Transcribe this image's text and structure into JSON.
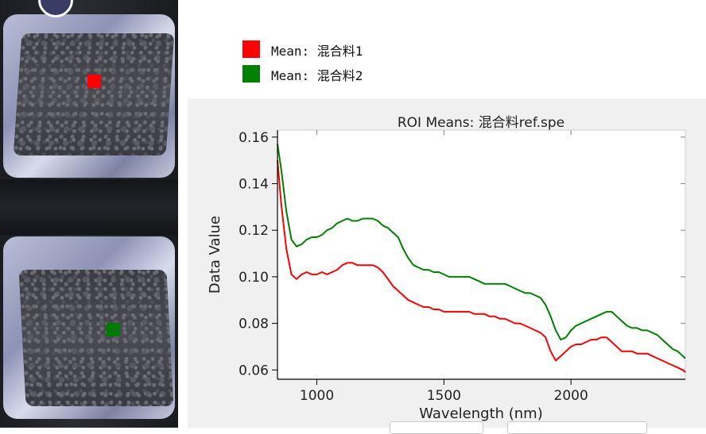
{
  "legend": {
    "items": [
      {
        "label": "Mean: 混合料1",
        "color": "#ff0000"
      },
      {
        "label": "Mean: 混合料2",
        "color": "#008000"
      }
    ]
  },
  "chart_data": {
    "type": "line",
    "title": "ROI Means: 混合料ref.spe",
    "xlabel": "Wavelength (nm)",
    "ylabel": "Data Value",
    "xlim": [
      845,
      2450
    ],
    "ylim": [
      0.056,
      0.163
    ],
    "xticks": [
      1000,
      1500,
      2000
    ],
    "xtick_labels": [
      "1000",
      "1500",
      "2000"
    ],
    "yticks": [
      0.06,
      0.08,
      0.1,
      0.12,
      0.14,
      0.16
    ],
    "ytick_labels": [
      "0.06",
      "0.08",
      "0.10",
      "0.12",
      "0.14",
      "0.16"
    ],
    "grid": false,
    "series": [
      {
        "name": "Mean: 混合料1",
        "color": "#ff0000",
        "x": [
          845,
          860,
          880,
          900,
          920,
          940,
          960,
          980,
          1000,
          1020,
          1040,
          1060,
          1080,
          1100,
          1120,
          1140,
          1160,
          1180,
          1200,
          1220,
          1240,
          1260,
          1280,
          1300,
          1320,
          1340,
          1360,
          1380,
          1400,
          1420,
          1440,
          1460,
          1480,
          1500,
          1520,
          1540,
          1560,
          1580,
          1600,
          1620,
          1640,
          1660,
          1680,
          1700,
          1720,
          1740,
          1760,
          1780,
          1800,
          1820,
          1840,
          1860,
          1880,
          1900,
          1920,
          1940,
          1960,
          1980,
          2000,
          2020,
          2040,
          2060,
          2080,
          2100,
          2120,
          2140,
          2160,
          2180,
          2200,
          2220,
          2240,
          2260,
          2280,
          2300,
          2320,
          2340,
          2360,
          2380,
          2400,
          2420,
          2440,
          2450
        ],
        "y": [
          0.15,
          0.131,
          0.112,
          0.101,
          0.099,
          0.101,
          0.102,
          0.101,
          0.101,
          0.102,
          0.101,
          0.102,
          0.103,
          0.105,
          0.106,
          0.106,
          0.105,
          0.105,
          0.105,
          0.105,
          0.104,
          0.102,
          0.099,
          0.096,
          0.094,
          0.092,
          0.09,
          0.089,
          0.088,
          0.087,
          0.087,
          0.086,
          0.086,
          0.085,
          0.085,
          0.085,
          0.085,
          0.085,
          0.085,
          0.084,
          0.084,
          0.084,
          0.083,
          0.083,
          0.082,
          0.082,
          0.081,
          0.08,
          0.08,
          0.079,
          0.078,
          0.077,
          0.076,
          0.074,
          0.068,
          0.064,
          0.066,
          0.068,
          0.07,
          0.071,
          0.071,
          0.072,
          0.073,
          0.073,
          0.074,
          0.074,
          0.072,
          0.07,
          0.068,
          0.068,
          0.068,
          0.067,
          0.067,
          0.067,
          0.066,
          0.065,
          0.064,
          0.063,
          0.062,
          0.061,
          0.06,
          0.059
        ]
      },
      {
        "name": "Mean: 混合料2",
        "color": "#008000",
        "x": [
          845,
          860,
          880,
          900,
          920,
          940,
          960,
          980,
          1000,
          1020,
          1040,
          1060,
          1080,
          1100,
          1120,
          1140,
          1160,
          1180,
          1200,
          1220,
          1240,
          1260,
          1280,
          1300,
          1320,
          1340,
          1360,
          1380,
          1400,
          1420,
          1440,
          1460,
          1480,
          1500,
          1520,
          1540,
          1560,
          1580,
          1600,
          1620,
          1640,
          1660,
          1680,
          1700,
          1720,
          1740,
          1760,
          1780,
          1800,
          1820,
          1840,
          1860,
          1880,
          1900,
          1920,
          1940,
          1960,
          1980,
          2000,
          2020,
          2040,
          2060,
          2080,
          2100,
          2120,
          2140,
          2160,
          2180,
          2200,
          2220,
          2240,
          2260,
          2280,
          2300,
          2320,
          2340,
          2360,
          2380,
          2400,
          2420,
          2440,
          2450
        ],
        "y": [
          0.157,
          0.146,
          0.128,
          0.116,
          0.113,
          0.114,
          0.116,
          0.117,
          0.117,
          0.118,
          0.12,
          0.121,
          0.123,
          0.124,
          0.125,
          0.124,
          0.124,
          0.125,
          0.125,
          0.125,
          0.124,
          0.122,
          0.121,
          0.119,
          0.117,
          0.112,
          0.108,
          0.105,
          0.104,
          0.103,
          0.103,
          0.102,
          0.102,
          0.101,
          0.1,
          0.1,
          0.1,
          0.1,
          0.1,
          0.099,
          0.098,
          0.097,
          0.097,
          0.097,
          0.097,
          0.097,
          0.096,
          0.095,
          0.094,
          0.093,
          0.093,
          0.092,
          0.091,
          0.088,
          0.083,
          0.077,
          0.073,
          0.074,
          0.077,
          0.079,
          0.08,
          0.081,
          0.082,
          0.083,
          0.084,
          0.085,
          0.085,
          0.083,
          0.081,
          0.079,
          0.078,
          0.078,
          0.077,
          0.077,
          0.076,
          0.075,
          0.073,
          0.071,
          0.069,
          0.068,
          0.066,
          0.065
        ]
      }
    ]
  }
}
